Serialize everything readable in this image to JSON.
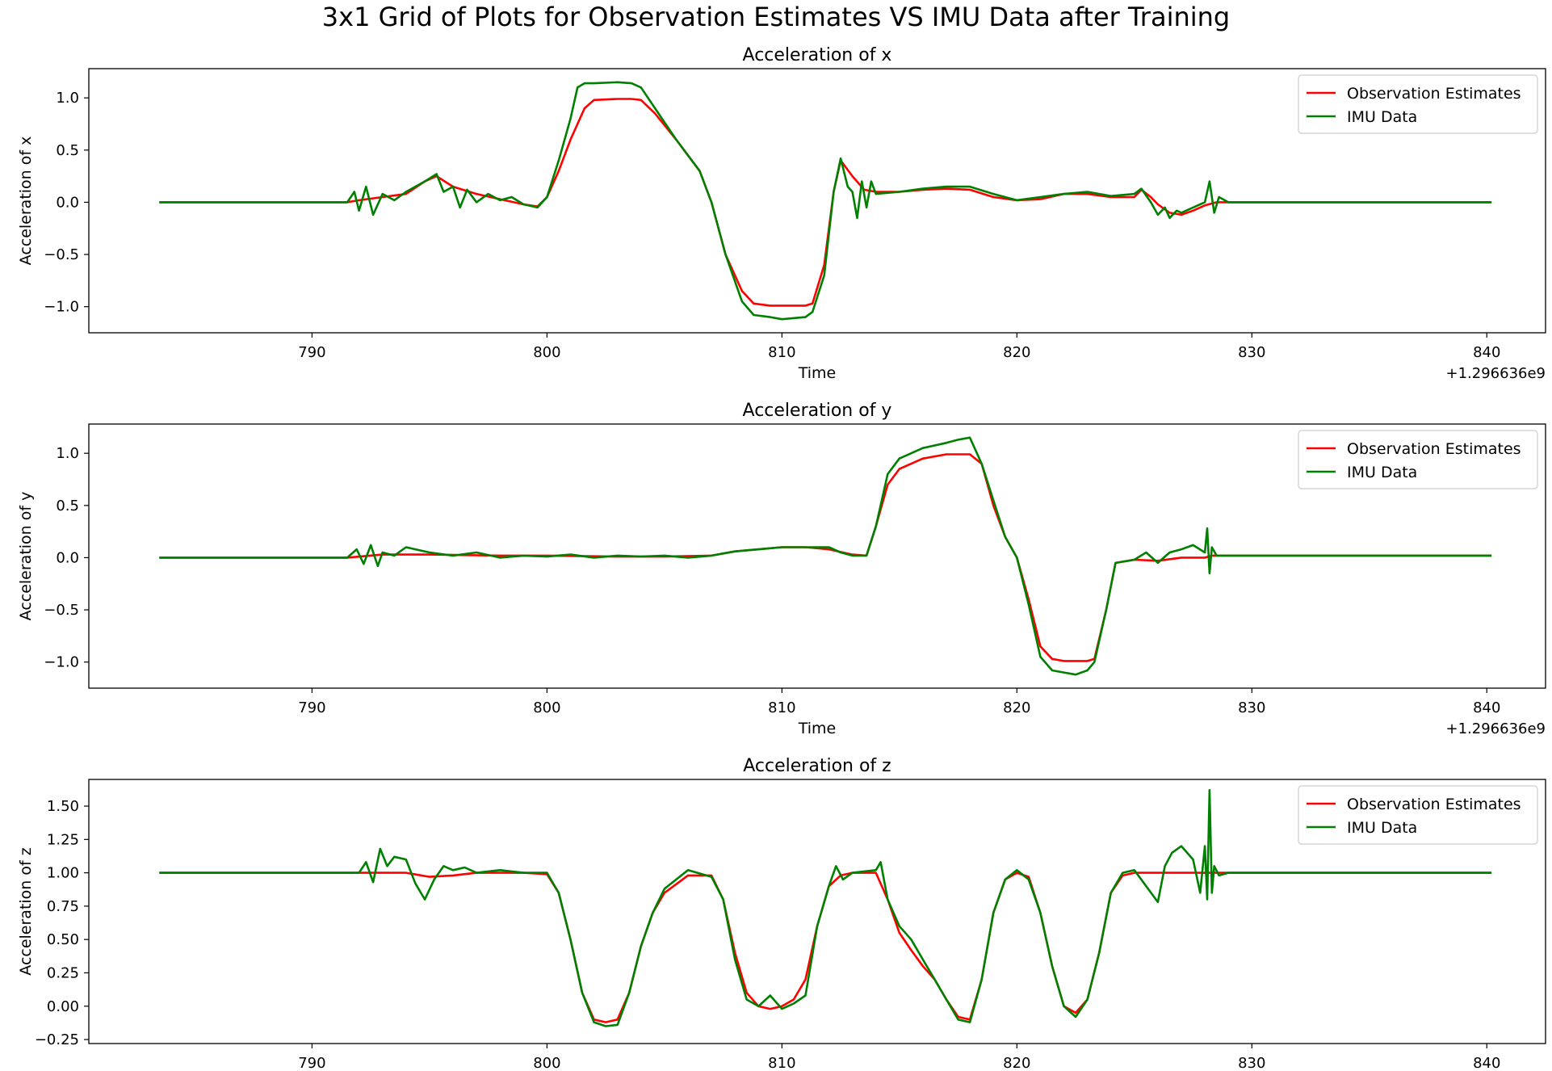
{
  "figure": {
    "suptitle": "3x1 Grid of Plots for Observation Estimates VS IMU Data after Training"
  },
  "colors": {
    "observation": "#ff0000",
    "imu": "#008000"
  },
  "chart_data": [
    {
      "type": "line",
      "title": "Acceleration of x",
      "xlabel": "Time",
      "ylabel": "Acceleration of x",
      "x_offset_label": "+1.296636e9",
      "xlim": [
        780.5,
        842.5
      ],
      "ylim": [
        -1.25,
        1.28
      ],
      "xticks": [
        790,
        800,
        810,
        820,
        830,
        840
      ],
      "yticks": [
        1.0,
        0.5,
        0.0,
        -0.5,
        -1.0
      ],
      "ytick_labels": [
        "1.0",
        "0.5",
        "0.0",
        "−0.5",
        "−1.0"
      ],
      "legend": [
        "Observation Estimates",
        "IMU Data"
      ],
      "legend_position": "upper right",
      "series": [
        {
          "name": "Observation Estimates",
          "color": "#ff0000",
          "x": [
            783.5,
            791.5,
            792,
            793,
            794,
            794.8,
            795.3,
            796,
            797,
            798,
            799,
            799.6,
            800,
            800.5,
            801,
            801.6,
            802,
            803,
            803.6,
            804,
            804.6,
            805.5,
            806.5,
            807,
            807.6,
            808.3,
            808.8,
            809.5,
            810,
            811,
            811.3,
            811.8,
            812.2,
            812.5,
            813,
            813.5,
            814,
            815,
            816,
            817,
            818,
            819,
            820,
            821,
            822,
            823,
            824,
            825,
            825.3,
            825.7,
            826,
            826.5,
            827,
            827.5,
            828,
            828.5,
            829,
            830,
            835,
            840.2
          ],
          "y": [
            0.0,
            0.0,
            0.02,
            0.05,
            0.08,
            0.2,
            0.25,
            0.15,
            0.08,
            0.03,
            -0.02,
            -0.04,
            0.05,
            0.3,
            0.6,
            0.9,
            0.98,
            0.99,
            0.99,
            0.98,
            0.85,
            0.6,
            0.3,
            0.0,
            -0.5,
            -0.85,
            -0.97,
            -0.99,
            -0.99,
            -0.99,
            -0.97,
            -0.6,
            0.1,
            0.4,
            0.25,
            0.12,
            0.1,
            0.1,
            0.12,
            0.13,
            0.12,
            0.05,
            0.02,
            0.03,
            0.08,
            0.08,
            0.05,
            0.05,
            0.12,
            0.05,
            -0.02,
            -0.1,
            -0.12,
            -0.08,
            -0.03,
            0.0,
            0.0,
            0.0,
            0.0,
            0.0
          ]
        },
        {
          "name": "IMU Data",
          "color": "#008000",
          "x": [
            783.5,
            791.5,
            791.8,
            792,
            792.3,
            792.6,
            793,
            793.5,
            794,
            794.8,
            795.3,
            795.6,
            796,
            796.3,
            796.6,
            797,
            797.5,
            798,
            798.5,
            799,
            799.6,
            800,
            800.5,
            801,
            801.3,
            801.6,
            802,
            803,
            803.6,
            804,
            804.6,
            805.5,
            806.5,
            807,
            807.6,
            808.3,
            808.8,
            809.5,
            810,
            811,
            811.3,
            811.8,
            812.2,
            812.5,
            812.8,
            813,
            813.2,
            813.4,
            813.6,
            813.8,
            814,
            815,
            816,
            817,
            818,
            819,
            820,
            821,
            822,
            823,
            824,
            825,
            825.3,
            825.7,
            826,
            826.3,
            826.5,
            826.8,
            827,
            827.5,
            828,
            828.2,
            828.4,
            828.6,
            829,
            830,
            835,
            840.2
          ],
          "y": [
            0.0,
            0.0,
            0.1,
            -0.08,
            0.15,
            -0.12,
            0.08,
            0.02,
            0.1,
            0.2,
            0.27,
            0.1,
            0.15,
            -0.05,
            0.12,
            0.0,
            0.08,
            0.02,
            0.05,
            -0.02,
            -0.05,
            0.05,
            0.4,
            0.8,
            1.1,
            1.14,
            1.14,
            1.15,
            1.14,
            1.1,
            0.9,
            0.6,
            0.3,
            0.0,
            -0.5,
            -0.95,
            -1.08,
            -1.1,
            -1.12,
            -1.1,
            -1.05,
            -0.7,
            0.1,
            0.42,
            0.15,
            0.1,
            -0.15,
            0.2,
            -0.05,
            0.2,
            0.08,
            0.1,
            0.13,
            0.15,
            0.15,
            0.08,
            0.02,
            0.05,
            0.08,
            0.1,
            0.06,
            0.08,
            0.13,
            0.0,
            -0.12,
            -0.05,
            -0.15,
            -0.08,
            -0.1,
            -0.05,
            0.0,
            0.2,
            -0.1,
            0.05,
            0.0,
            0.0,
            0.0,
            0.0
          ]
        }
      ]
    },
    {
      "type": "line",
      "title": "Acceleration of y",
      "xlabel": "Time",
      "ylabel": "Acceleration of y",
      "x_offset_label": "+1.296636e9",
      "xlim": [
        780.5,
        842.5
      ],
      "ylim": [
        -1.25,
        1.28
      ],
      "xticks": [
        790,
        800,
        810,
        820,
        830,
        840
      ],
      "yticks": [
        1.0,
        0.5,
        0.0,
        -0.5,
        -1.0
      ],
      "ytick_labels": [
        "1.0",
        "0.5",
        "0.0",
        "−0.5",
        "−1.0"
      ],
      "legend": [
        "Observation Estimates",
        "IMU Data"
      ],
      "legend_position": "upper right",
      "series": [
        {
          "name": "Observation Estimates",
          "color": "#ff0000",
          "x": [
            783.5,
            791.5,
            793,
            795,
            798,
            800,
            803,
            805,
            807,
            808,
            810,
            811,
            812,
            813,
            813.6,
            814,
            814.5,
            815,
            816,
            817,
            818,
            818.5,
            819,
            819.5,
            820,
            820.5,
            821,
            821.5,
            822,
            823,
            823.3,
            823.8,
            824.2,
            825,
            826,
            827,
            828,
            828.3,
            829,
            835,
            840.2
          ],
          "y": [
            0.0,
            0.0,
            0.03,
            0.03,
            0.02,
            0.02,
            0.01,
            0.01,
            0.02,
            0.06,
            0.1,
            0.1,
            0.08,
            0.03,
            0.02,
            0.3,
            0.7,
            0.85,
            0.95,
            0.99,
            0.99,
            0.9,
            0.5,
            0.2,
            0.0,
            -0.4,
            -0.85,
            -0.97,
            -0.99,
            -0.99,
            -0.97,
            -0.5,
            -0.05,
            -0.02,
            -0.03,
            0.0,
            0.0,
            0.02,
            0.02,
            0.02,
            0.02
          ]
        },
        {
          "name": "IMU Data",
          "color": "#008000",
          "x": [
            783.5,
            791.5,
            791.9,
            792.2,
            792.5,
            792.8,
            793,
            793.5,
            794,
            795,
            796,
            797,
            798,
            799,
            800,
            801,
            802,
            803,
            804,
            805,
            806,
            807,
            808,
            809,
            810,
            811,
            812,
            812.5,
            813,
            813.6,
            814,
            814.5,
            815,
            816,
            817,
            817.5,
            818,
            818.5,
            819,
            819.5,
            820,
            820.5,
            821,
            821.5,
            822,
            822.5,
            823,
            823.3,
            823.8,
            824.2,
            825,
            825.5,
            826,
            826.5,
            827,
            827.5,
            828,
            828.1,
            828.2,
            828.3,
            828.5,
            829,
            835,
            840.2
          ],
          "y": [
            0.0,
            0.0,
            0.08,
            -0.06,
            0.12,
            -0.08,
            0.05,
            0.02,
            0.1,
            0.05,
            0.02,
            0.05,
            0.0,
            0.02,
            0.01,
            0.03,
            0.0,
            0.02,
            0.01,
            0.02,
            0.0,
            0.02,
            0.06,
            0.08,
            0.1,
            0.1,
            0.1,
            0.05,
            0.02,
            0.02,
            0.3,
            0.8,
            0.95,
            1.05,
            1.1,
            1.13,
            1.15,
            0.9,
            0.55,
            0.2,
            0.0,
            -0.45,
            -0.95,
            -1.08,
            -1.1,
            -1.12,
            -1.08,
            -1.0,
            -0.5,
            -0.05,
            -0.02,
            0.05,
            -0.05,
            0.05,
            0.08,
            0.12,
            0.05,
            0.28,
            -0.15,
            0.1,
            0.02,
            0.02,
            0.02,
            0.02
          ]
        }
      ]
    },
    {
      "type": "line",
      "title": "Acceleration of z",
      "xlabel": "",
      "ylabel": "Acceleration of z",
      "x_offset_label": "",
      "xlim": [
        780.5,
        842.5
      ],
      "ylim": [
        -0.28,
        1.7
      ],
      "xticks": [
        790,
        800,
        810,
        820,
        830,
        840
      ],
      "yticks": [
        1.5,
        1.25,
        1.0,
        0.75,
        0.5,
        0.25,
        0.0,
        -0.25
      ],
      "ytick_labels": [
        "1.50",
        "1.25",
        "1.00",
        "0.75",
        "0.50",
        "0.25",
        "0.00",
        "−0.25"
      ],
      "legend": [
        "Observation Estimates",
        "IMU Data"
      ],
      "legend_position": "upper right",
      "series": [
        {
          "name": "Observation Estimates",
          "color": "#ff0000",
          "x": [
            783.5,
            792,
            794,
            795,
            796,
            797,
            798,
            799,
            800,
            800.5,
            801,
            801.5,
            802,
            802.5,
            803,
            803.5,
            804,
            804.5,
            805,
            806,
            807,
            807.5,
            808,
            808.5,
            809,
            809.5,
            810,
            810.5,
            811,
            811.5,
            812,
            812.5,
            813,
            814,
            814.5,
            815,
            815.5,
            816,
            816.5,
            817,
            817.5,
            818,
            818.5,
            819,
            819.5,
            820,
            820.5,
            821,
            821.5,
            822,
            822.5,
            823,
            823.5,
            824,
            824.5,
            825,
            826,
            827,
            828,
            829,
            835,
            840.2
          ],
          "y": [
            1.0,
            1.0,
            1.0,
            0.97,
            0.98,
            1.0,
            1.0,
            1.0,
            0.99,
            0.85,
            0.5,
            0.1,
            -0.1,
            -0.12,
            -0.1,
            0.1,
            0.45,
            0.7,
            0.85,
            0.98,
            0.98,
            0.8,
            0.4,
            0.1,
            0.0,
            -0.02,
            0.0,
            0.05,
            0.2,
            0.6,
            0.9,
            0.98,
            1.0,
            1.0,
            0.8,
            0.55,
            0.42,
            0.3,
            0.2,
            0.05,
            -0.08,
            -0.1,
            0.2,
            0.7,
            0.95,
            1.0,
            0.97,
            0.7,
            0.3,
            0.0,
            -0.05,
            0.05,
            0.4,
            0.85,
            0.98,
            1.0,
            1.0,
            1.0,
            1.0,
            1.0,
            1.0,
            1.0
          ]
        },
        {
          "name": "IMU Data",
          "color": "#008000",
          "x": [
            783.5,
            792,
            792.3,
            792.6,
            792.9,
            793.2,
            793.5,
            794,
            794.4,
            794.8,
            795.2,
            795.6,
            796,
            796.5,
            797,
            798,
            799,
            800,
            800.5,
            801,
            801.5,
            802,
            802.5,
            803,
            803.5,
            804,
            804.5,
            805,
            806,
            807,
            807.5,
            808,
            808.5,
            809,
            809.5,
            810,
            810.5,
            811,
            811.5,
            812,
            812.3,
            812.6,
            813,
            814,
            814.2,
            814.5,
            815,
            815.5,
            816,
            816.5,
            817,
            817.5,
            818,
            818.5,
            819,
            819.5,
            820,
            820.5,
            821,
            821.5,
            822,
            822.5,
            823,
            823.5,
            824,
            824.5,
            825,
            825.5,
            826,
            826.3,
            826.6,
            827,
            827.5,
            827.8,
            828,
            828.1,
            828.2,
            828.3,
            828.4,
            828.6,
            829,
            835,
            840.2
          ],
          "y": [
            1.0,
            1.0,
            1.08,
            0.93,
            1.18,
            1.05,
            1.12,
            1.1,
            0.92,
            0.8,
            0.95,
            1.05,
            1.02,
            1.04,
            1.0,
            1.02,
            1.0,
            1.0,
            0.85,
            0.5,
            0.1,
            -0.12,
            -0.15,
            -0.14,
            0.1,
            0.45,
            0.7,
            0.88,
            1.02,
            0.97,
            0.8,
            0.35,
            0.05,
            0.0,
            0.08,
            -0.02,
            0.02,
            0.08,
            0.6,
            0.9,
            1.05,
            0.95,
            1.0,
            1.02,
            1.08,
            0.8,
            0.6,
            0.5,
            0.35,
            0.2,
            0.05,
            -0.1,
            -0.12,
            0.2,
            0.7,
            0.95,
            1.02,
            0.95,
            0.7,
            0.3,
            0.0,
            -0.08,
            0.05,
            0.4,
            0.85,
            1.0,
            1.02,
            0.9,
            0.78,
            1.05,
            1.15,
            1.2,
            1.1,
            0.85,
            1.2,
            0.8,
            1.62,
            0.85,
            1.05,
            0.98,
            1.0,
            1.0,
            1.0
          ]
        }
      ]
    }
  ]
}
